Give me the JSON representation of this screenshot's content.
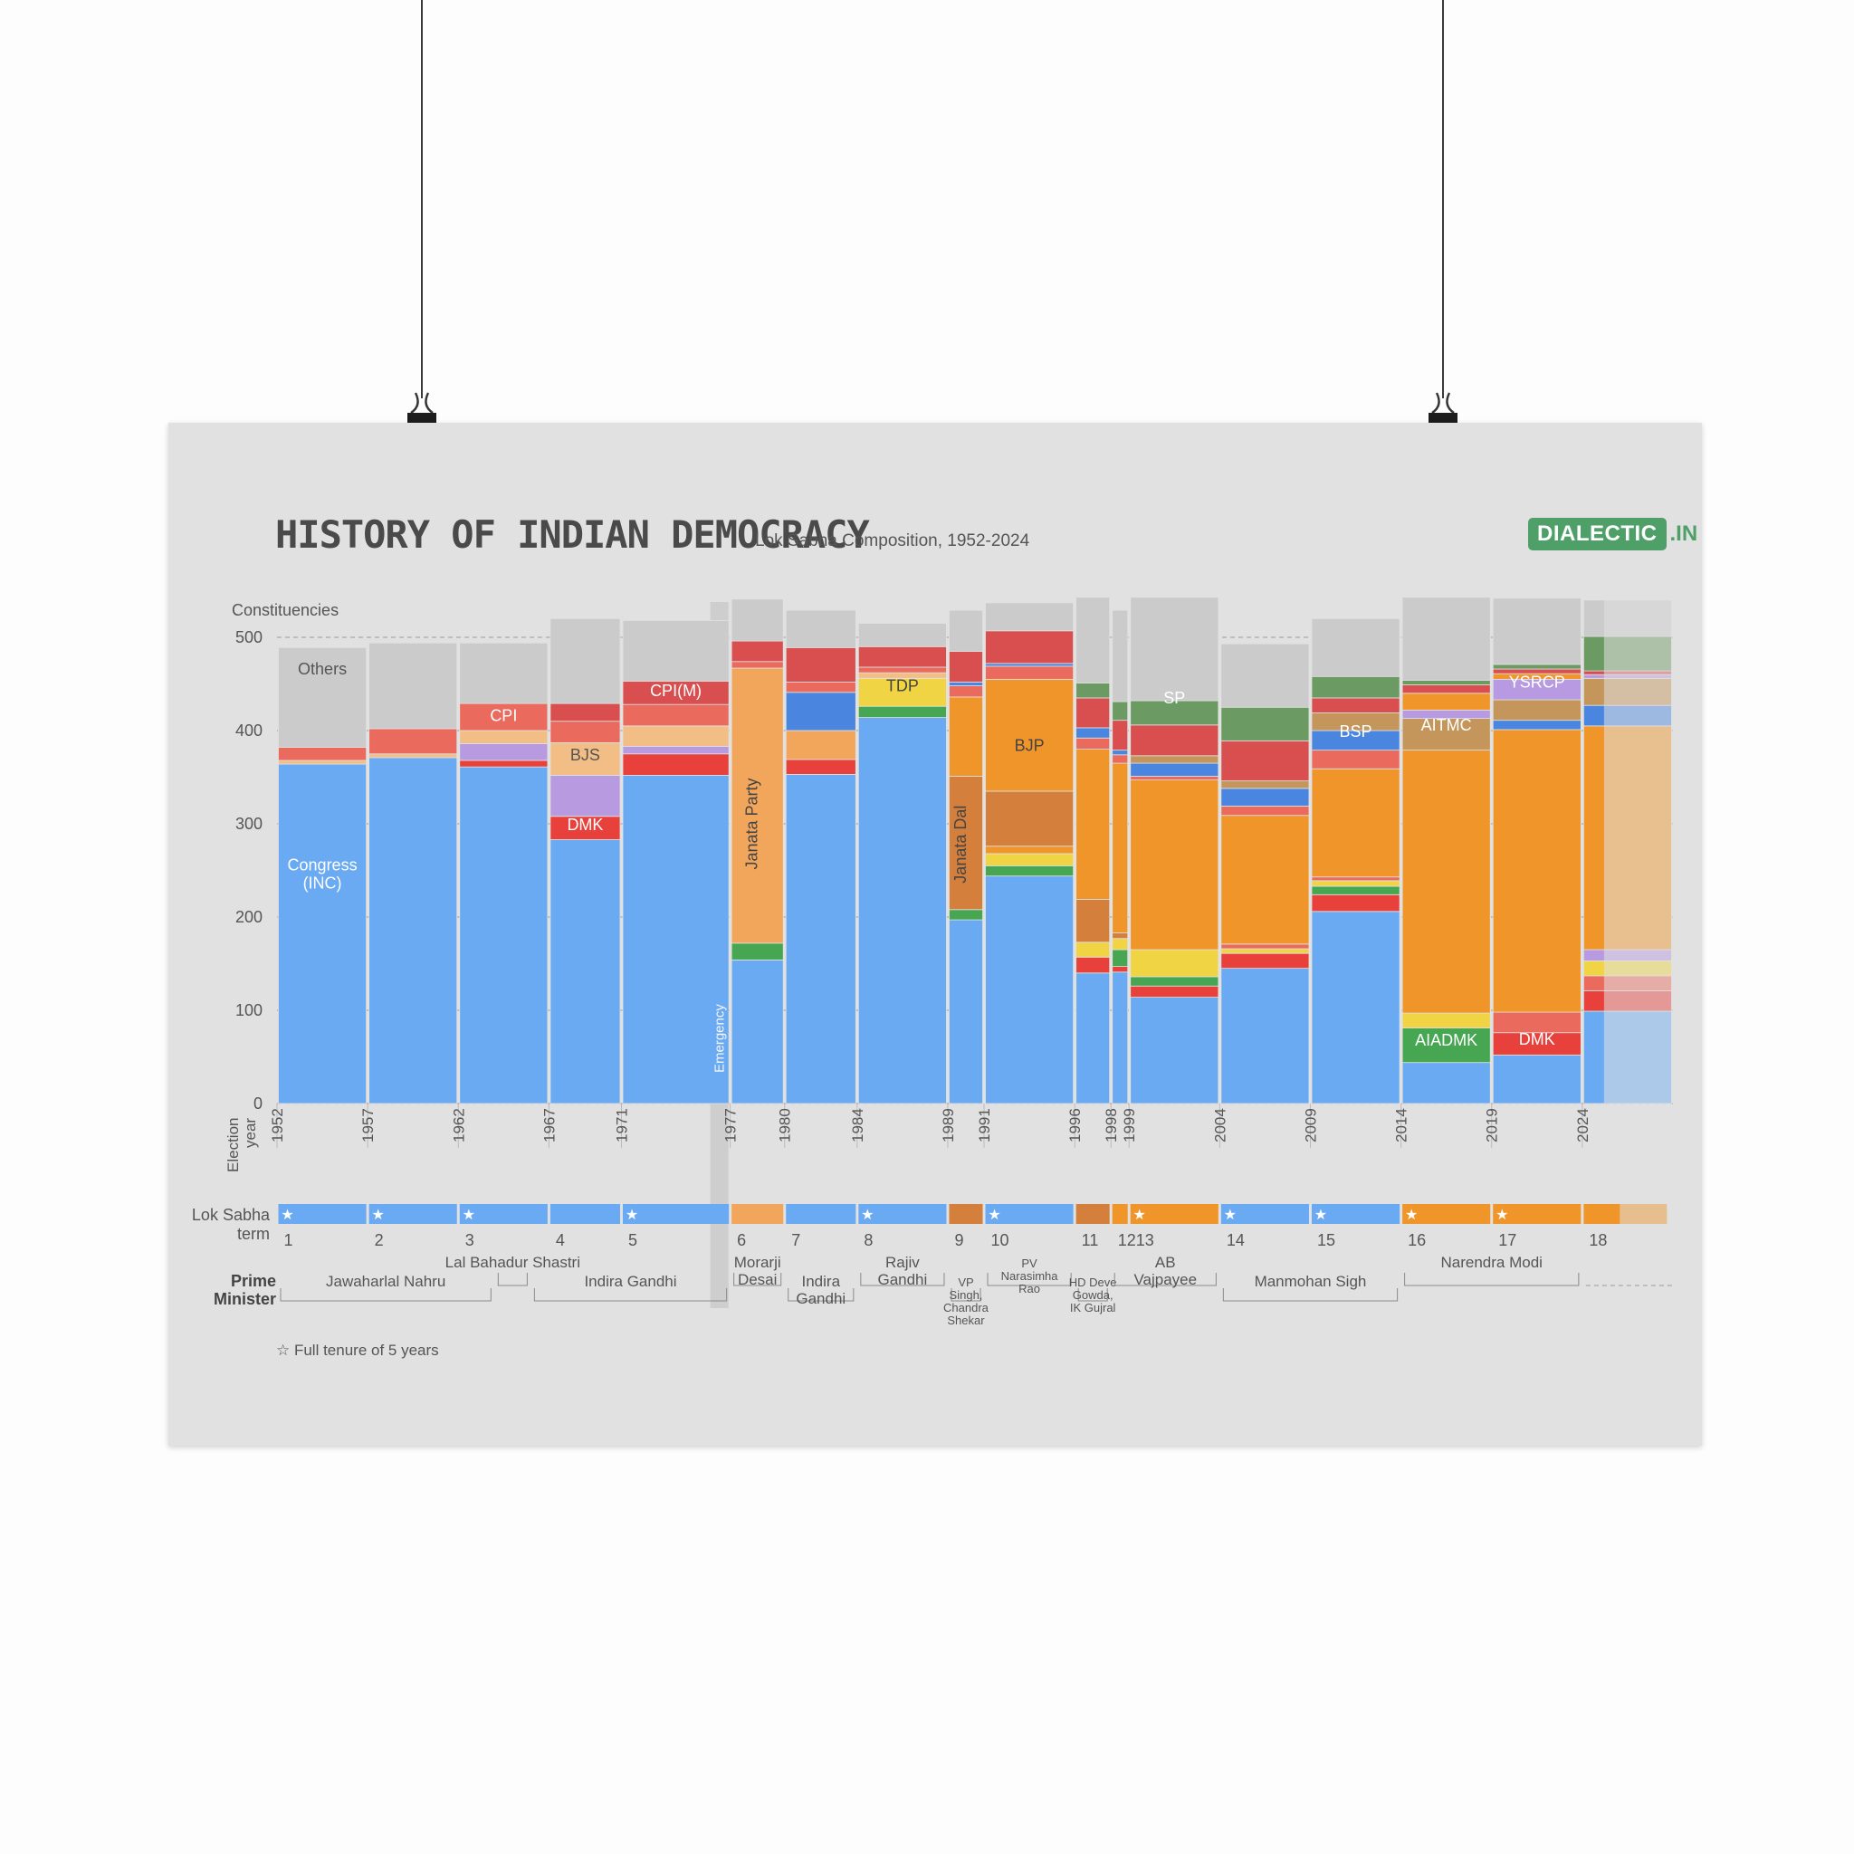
{
  "poster": {
    "title": "HISTORY OF INDIAN DEMOCRACY",
    "subtitle": "Lok Sabha Composition, 1952-2024",
    "brand": "DIALECTIC",
    "brand_suffix": ".IN",
    "colors": {
      "background": "#e1e1e1",
      "brand": "#4fa068"
    }
  },
  "chart_data": {
    "type": "bar",
    "title": "HISTORY OF INDIAN DEMOCRACY",
    "subtitle": "Lok Sabha Composition, 1952-2024",
    "ylabel": "Constituencies",
    "xlabel": "Election year",
    "ylim": [
      0,
      540
    ],
    "yticks": [
      0,
      100,
      200,
      300,
      400,
      500
    ],
    "grid": true,
    "emergency_label": "Emergency",
    "full_tenure_note": "☆ Full tenure of 5 years",
    "term_axis_label": [
      "Lok Sabha",
      "term"
    ],
    "pm_axis_label": [
      "Prime",
      "Minister"
    ],
    "party_colors": {
      "INC": "#6aaaf2",
      "BJP": "#f0952a",
      "JD": "#d57f3d",
      "JP": "#f2a65c",
      "BJS": "#f2be86",
      "CPI": "#ea6a5e",
      "CPIM": "#d94e4e",
      "DMK": "#e8413c",
      "AIADMK": "#46a651",
      "TDP": "#f0d444",
      "SP": "#6b9a62",
      "BSP": "#4a86df",
      "AITMC": "#c4965c",
      "YSRCP": "#b89ae2",
      "SWA": "#b79ae0",
      "Others": "#cbcbcb"
    },
    "elections": [
      {
        "year": "1952",
        "x0": 1952,
        "x1": 1957,
        "term": "1",
        "full": true,
        "segments": [
          [
            "INC",
            364
          ],
          [
            "BJS",
            4
          ],
          [
            "CPI",
            14
          ],
          [
            "Others",
            107
          ]
        ]
      },
      {
        "year": "1957",
        "x0": 1957,
        "x1": 1962,
        "term": "2",
        "full": true,
        "segments": [
          [
            "INC",
            371
          ],
          [
            "BJS",
            4
          ],
          [
            "CPI",
            27
          ],
          [
            "Others",
            92
          ]
        ]
      },
      {
        "year": "1962",
        "x0": 1962,
        "x1": 1967,
        "term": "3",
        "full": true,
        "segments": [
          [
            "INC",
            361
          ],
          [
            "DMK",
            7
          ],
          [
            "SWA",
            18
          ],
          [
            "BJS",
            14
          ],
          [
            "CPI",
            29
          ],
          [
            "Others",
            65
          ]
        ]
      },
      {
        "year": "1967",
        "x0": 1967,
        "x1": 1971,
        "term": "4",
        "full": false,
        "segments": [
          [
            "INC",
            283
          ],
          [
            "DMK",
            25
          ],
          [
            "SWA",
            44
          ],
          [
            "BJS",
            35
          ],
          [
            "CPI",
            23
          ],
          [
            "CPIM",
            19
          ],
          [
            "Others",
            91
          ]
        ]
      },
      {
        "year": "1971",
        "x0": 1971,
        "x1": 1977,
        "term": "5",
        "full": true,
        "segments": [
          [
            "INC",
            352
          ],
          [
            "DMK",
            23
          ],
          [
            "SWA",
            8
          ],
          [
            "BJS",
            22
          ],
          [
            "CPI",
            23
          ],
          [
            "CPIM",
            25
          ],
          [
            "Others",
            65
          ]
        ]
      },
      {
        "year": "1977",
        "x0": 1977,
        "x1": 1980,
        "term": "6",
        "full": false,
        "segments": [
          [
            "INC",
            154
          ],
          [
            "AIADMK",
            18
          ],
          [
            "JP",
            295
          ],
          [
            "CPI",
            7
          ],
          [
            "CPIM",
            22
          ],
          [
            "Others",
            45
          ]
        ]
      },
      {
        "year": "1980",
        "x0": 1980,
        "x1": 1984,
        "term": "7",
        "full": false,
        "segments": [
          [
            "INC",
            353
          ],
          [
            "DMK",
            16
          ],
          [
            "JP",
            31
          ],
          [
            "BSP",
            41
          ],
          [
            "CPI",
            11
          ],
          [
            "CPIM",
            37
          ],
          [
            "Others",
            40
          ]
        ]
      },
      {
        "year": "1984",
        "x0": 1984,
        "x1": 1989,
        "term": "8",
        "full": true,
        "segments": [
          [
            "INC",
            414
          ],
          [
            "AIADMK",
            12
          ],
          [
            "TDP",
            30
          ],
          [
            "BJS",
            6
          ],
          [
            "CPI",
            6
          ],
          [
            "CPIM",
            22
          ],
          [
            "Others",
            25
          ]
        ]
      },
      {
        "year": "1989",
        "x0": 1989,
        "x1": 1991,
        "term": "9",
        "full": false,
        "segments": [
          [
            "INC",
            197
          ],
          [
            "AIADMK",
            11
          ],
          [
            "JD",
            143
          ],
          [
            "BJP",
            85
          ],
          [
            "CPI",
            12
          ],
          [
            "BSP",
            4
          ],
          [
            "CPIM",
            33
          ],
          [
            "Others",
            44
          ]
        ]
      },
      {
        "year": "1991",
        "x0": 1991,
        "x1": 1996,
        "term": "10",
        "full": true,
        "segments": [
          [
            "INC",
            244
          ],
          [
            "AIADMK",
            11
          ],
          [
            "TDP",
            13
          ],
          [
            "BJP",
            8
          ],
          [
            "JD",
            59
          ],
          [
            "BJP",
            120
          ],
          [
            "CPI",
            14
          ],
          [
            "BSP",
            3
          ],
          [
            "CPIM",
            35
          ],
          [
            "Others",
            30
          ]
        ]
      },
      {
        "year": "1996",
        "x0": 1996,
        "x1": 1998,
        "term": "11",
        "full": false,
        "segments": [
          [
            "INC",
            140
          ],
          [
            "DMK",
            17
          ],
          [
            "TDP",
            16
          ],
          [
            "JD",
            46
          ],
          [
            "BJP",
            161
          ],
          [
            "CPI",
            12
          ],
          [
            "BSP",
            11
          ],
          [
            "CPIM",
            32
          ],
          [
            "SP",
            16
          ],
          [
            "Others",
            92
          ]
        ]
      },
      {
        "year": "1998",
        "x0": 1998,
        "x1": 1999,
        "term": "12",
        "full": false,
        "segments": [
          [
            "INC",
            141
          ],
          [
            "DMK",
            6
          ],
          [
            "AIADMK",
            18
          ],
          [
            "TDP",
            12
          ],
          [
            "JD",
            6
          ],
          [
            "BJP",
            182
          ],
          [
            "CPI",
            9
          ],
          [
            "BSP",
            5
          ],
          [
            "CPIM",
            32
          ],
          [
            "SP",
            20
          ],
          [
            "Others",
            98
          ]
        ]
      },
      {
        "year": "1999",
        "x0": 1999,
        "x1": 2004,
        "term": "13",
        "full": true,
        "segments": [
          [
            "INC",
            114
          ],
          [
            "DMK",
            12
          ],
          [
            "AIADMK",
            10
          ],
          [
            "TDP",
            29
          ],
          [
            "BJP",
            182
          ],
          [
            "CPI",
            4
          ],
          [
            "BSP",
            14
          ],
          [
            "AITMC",
            8
          ],
          [
            "CPIM",
            33
          ],
          [
            "SP",
            26
          ],
          [
            "Others",
            111
          ]
        ]
      },
      {
        "year": "2004",
        "x0": 2004,
        "x1": 2009,
        "term": "14",
        "full": true,
        "segments": [
          [
            "INC",
            145
          ],
          [
            "DMK",
            16
          ],
          [
            "TDP",
            5
          ],
          [
            "CPI",
            5
          ],
          [
            "BJP",
            138
          ],
          [
            "CPI",
            10
          ],
          [
            "BSP",
            19
          ],
          [
            "AITMC",
            8
          ],
          [
            "CPIM",
            43
          ],
          [
            "SP",
            36
          ],
          [
            "Others",
            68
          ]
        ]
      },
      {
        "year": "2009",
        "x0": 2009,
        "x1": 2014,
        "term": "15",
        "full": true,
        "segments": [
          [
            "INC",
            206
          ],
          [
            "DMK",
            18
          ],
          [
            "AIADMK",
            9
          ],
          [
            "TDP",
            6
          ],
          [
            "CPI",
            4
          ],
          [
            "BJP",
            116
          ],
          [
            "CPI",
            20
          ],
          [
            "BSP",
            21
          ],
          [
            "AITMC",
            19
          ],
          [
            "CPIM",
            16
          ],
          [
            "SP",
            23
          ],
          [
            "Others",
            62
          ]
        ]
      },
      {
        "year": "2014",
        "x0": 2014,
        "x1": 2019,
        "term": "16",
        "full": true,
        "segments": [
          [
            "INC",
            44
          ],
          [
            "AIADMK",
            37
          ],
          [
            "TDP",
            16
          ],
          [
            "BJP",
            282
          ],
          [
            "AITMC",
            34
          ],
          [
            "YSRCP",
            9
          ],
          [
            "BJP",
            18
          ],
          [
            "CPIM",
            9
          ],
          [
            "SP",
            5
          ],
          [
            "Others",
            89
          ]
        ]
      },
      {
        "year": "2019",
        "x0": 2019,
        "x1": 2024,
        "term": "17",
        "full": true,
        "segments": [
          [
            "INC",
            52
          ],
          [
            "DMK",
            24
          ],
          [
            "CPI",
            22
          ],
          [
            "BJP",
            303
          ],
          [
            "BSP",
            10
          ],
          [
            "AITMC",
            22
          ],
          [
            "YSRCP",
            22
          ],
          [
            "BJP",
            6
          ],
          [
            "CPIM",
            5
          ],
          [
            "SP",
            5
          ],
          [
            "Others",
            71
          ]
        ]
      },
      {
        "year": "2024",
        "x0": 2024,
        "x1": 2029,
        "term": "18",
        "full": false,
        "segments": [
          [
            "INC",
            99
          ],
          [
            "DMK",
            22
          ],
          [
            "CPI",
            16
          ],
          [
            "TDP",
            16
          ],
          [
            "SWA",
            12
          ],
          [
            "BJP",
            240
          ],
          [
            "BSP",
            22
          ],
          [
            "AITMC",
            29
          ],
          [
            "YSRCP",
            4
          ],
          [
            "CPIM",
            4
          ],
          [
            "SP",
            37
          ],
          [
            "Others",
            39
          ]
        ]
      }
    ],
    "party_labels": [
      {
        "text": "Others",
        "year": 1954.5,
        "value": 460,
        "color": "#555555"
      },
      {
        "text": "Congress\n(INC)",
        "year": 1954.5,
        "value": 250,
        "color": "#ffffff"
      },
      {
        "text": "CPI",
        "year": 1964.5,
        "value": 410,
        "color": "#ffffff"
      },
      {
        "text": "BJS",
        "year": 1969,
        "value": 368,
        "color": "#555555"
      },
      {
        "text": "DMK",
        "year": 1969,
        "value": 293,
        "color": "#ffffff"
      },
      {
        "text": "CPI(M)",
        "year": 1974,
        "value": 437,
        "color": "#ffffff"
      },
      {
        "text": "Janata Party",
        "year": 1978.5,
        "value": 300,
        "color": "#444444",
        "vertical": true
      },
      {
        "text": "TDP",
        "year": 1986.5,
        "value": 442,
        "color": "#444444"
      },
      {
        "text": "Janata Dal",
        "year": 1990,
        "value": 278,
        "color": "#444444",
        "vertical": true
      },
      {
        "text": "BJP",
        "year": 1993.5,
        "value": 378,
        "color": "#444444"
      },
      {
        "text": "SP",
        "year": 2001.5,
        "value": 429,
        "color": "#ffffff"
      },
      {
        "text": "BSP",
        "year": 2011.5,
        "value": 393,
        "color": "#ffffff"
      },
      {
        "text": "AITMC",
        "year": 2016.5,
        "value": 400,
        "color": "#ffffff"
      },
      {
        "text": "YSRCP",
        "year": 2021.5,
        "value": 446,
        "color": "#ffffff"
      },
      {
        "text": "AIADMK",
        "year": 2016.5,
        "value": 62,
        "color": "#ffffff"
      },
      {
        "text": "DMK",
        "year": 2021.5,
        "value": 63,
        "color": "#ffffff"
      }
    ],
    "prime_ministers": [
      {
        "name": "Jawaharlal Nahru",
        "from": 1952,
        "to": 1964
      },
      {
        "name": "Lal Bahadur Shastri",
        "from": 1964,
        "to": 1966
      },
      {
        "name": "Indira Gandhi",
        "from": 1966,
        "to": 1977
      },
      {
        "name": "Morarji\nDesai",
        "from": 1977,
        "to": 1980
      },
      {
        "name": "Indira\nGandhi",
        "from": 1980,
        "to": 1984
      },
      {
        "name": "Rajiv\nGandhi",
        "from": 1984,
        "to": 1989
      },
      {
        "name": "VP\nSingh,\nChandra\nShekar",
        "from": 1989,
        "to": 1991
      },
      {
        "name": "PV\nNarasimha\nRao",
        "from": 1991,
        "to": 1996
      },
      {
        "name": "HD Deve\nGowda,\nIK Gujral",
        "from": 1996,
        "to": 1998
      },
      {
        "name": "AB\nVajpayee",
        "from": 1998,
        "to": 2004
      },
      {
        "name": "Manmohan Sigh",
        "from": 2004,
        "to": 2014
      },
      {
        "name": "Narendra Modi",
        "from": 2014,
        "to": 2024
      }
    ]
  }
}
